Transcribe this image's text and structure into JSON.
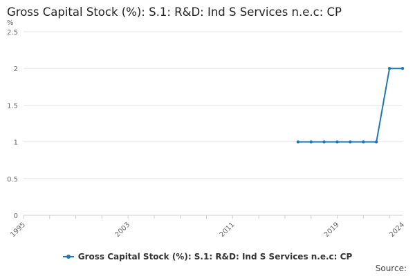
{
  "chart_data": {
    "type": "line",
    "title": "Gross Capital Stock (%): S.1: R&D: Ind S Services n.e.c: CP",
    "ylabel": "%",
    "xlabel": "",
    "xlim": [
      1995,
      2024
    ],
    "ylim": [
      0,
      2.5
    ],
    "x_ticks": [
      "1995",
      "2003",
      "2011",
      "2019",
      "2024"
    ],
    "y_ticks": [
      "0",
      "0.5",
      "1",
      "1.5",
      "2",
      "2.5"
    ],
    "grid": true,
    "legend_position": "bottom",
    "series": [
      {
        "name": "Gross Capital Stock (%): S.1: R&D: Ind S Services n.e.c: CP",
        "color": "#1f77b4",
        "x": [
          2016,
          2017,
          2018,
          2019,
          2020,
          2021,
          2022,
          2023,
          2024
        ],
        "y": [
          1,
          1,
          1,
          1,
          1,
          1,
          1,
          2,
          2
        ]
      }
    ]
  },
  "footer": {
    "source_label": "Source:"
  }
}
